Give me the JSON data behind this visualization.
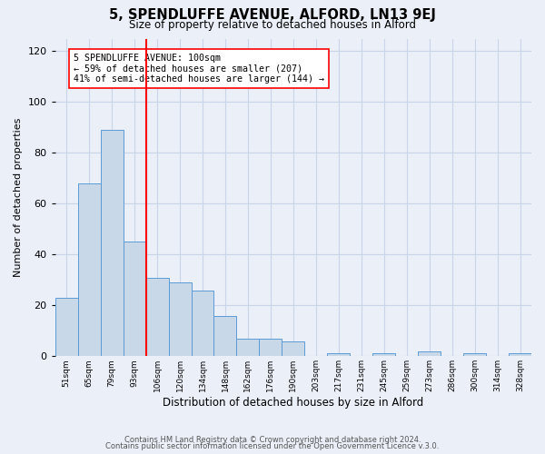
{
  "title": "5, SPENDLUFFE AVENUE, ALFORD, LN13 9EJ",
  "subtitle": "Size of property relative to detached houses in Alford",
  "xlabel": "Distribution of detached houses by size in Alford",
  "ylabel": "Number of detached properties",
  "bin_labels": [
    "51sqm",
    "65sqm",
    "79sqm",
    "93sqm",
    "106sqm",
    "120sqm",
    "134sqm",
    "148sqm",
    "162sqm",
    "176sqm",
    "190sqm",
    "203sqm",
    "217sqm",
    "231sqm",
    "245sqm",
    "259sqm",
    "273sqm",
    "286sqm",
    "300sqm",
    "314sqm",
    "328sqm"
  ],
  "bar_heights": [
    23,
    68,
    89,
    45,
    31,
    29,
    26,
    16,
    7,
    7,
    6,
    0,
    1,
    0,
    1,
    0,
    2,
    0,
    1,
    0,
    1
  ],
  "bar_color": "#c8d8e8",
  "bar_edge_color": "#5b9bd5",
  "reference_bar_index": 3,
  "reference_line_color": "red",
  "annotation_text": "5 SPENDLUFFE AVENUE: 100sqm\n← 59% of detached houses are smaller (207)\n41% of semi-detached houses are larger (144) →",
  "annotation_box_color": "white",
  "annotation_box_edge_color": "red",
  "ylim": [
    0,
    125
  ],
  "yticks": [
    0,
    20,
    40,
    60,
    80,
    100,
    120
  ],
  "grid_color": "#c8d4e8",
  "background_color": "#eaeff8",
  "footer_line1": "Contains HM Land Registry data © Crown copyright and database right 2024.",
  "footer_line2": "Contains public sector information licensed under the Open Government Licence v.3.0."
}
